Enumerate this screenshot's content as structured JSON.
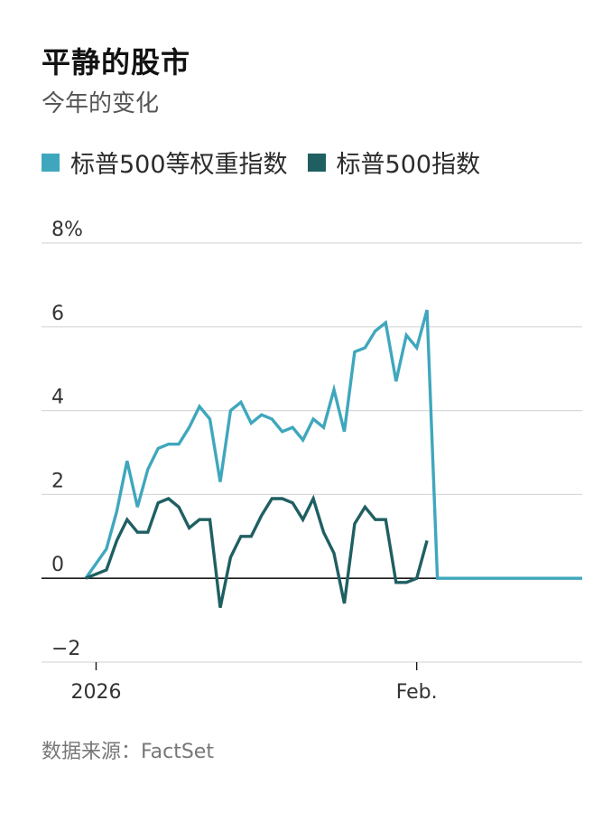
{
  "title": "平静的股市",
  "subtitle": "今年的变化",
  "source": "数据来源：FactSet",
  "chart_data": {
    "type": "line",
    "ylim": [
      -2,
      8
    ],
    "y_ticks": [
      -2,
      0,
      2,
      4,
      6,
      8
    ],
    "y_tick_labels": [
      "−2",
      "0",
      "2",
      "4",
      "6",
      "8%"
    ],
    "x_range": [
      "2025-12-31",
      "2026-02-17"
    ],
    "x_ticks": [
      "2026-01-01",
      "2026-02-01"
    ],
    "x_tick_labels": [
      "2026",
      "Feb."
    ],
    "grid": true,
    "legend": "top-left",
    "series": [
      {
        "name": "标普500等权重指数",
        "color": "#3fa7bd",
        "x": [
          "2025-12-31",
          "2026-01-02",
          "2026-01-03",
          "2026-01-04",
          "2026-01-05",
          "2026-01-06",
          "2026-01-07",
          "2026-01-08",
          "2026-01-09",
          "2026-01-10",
          "2026-01-11",
          "2026-01-12",
          "2026-01-13",
          "2026-01-14",
          "2026-01-15",
          "2026-01-16",
          "2026-01-17",
          "2026-01-18",
          "2026-01-19",
          "2026-01-20",
          "2026-01-21",
          "2026-01-22",
          "2026-01-23",
          "2026-01-24",
          "2026-01-25",
          "2026-01-26",
          "2026-01-27",
          "2026-01-28",
          "2026-01-29",
          "2026-01-30",
          "2026-01-31",
          "2026-02-01",
          "2026-02-02",
          "2026-02-03",
          "2026-02-04",
          "2026-02-05",
          "2026-02-06",
          "2026-02-07",
          "2026-02-08",
          "2026-02-09",
          "2026-02-10",
          "2026-02-11",
          "2026-02-12",
          "2026-02-13",
          "2026-02-14",
          "2026-02-15",
          "2026-02-16",
          "2026-02-17"
        ],
        "values": [
          0.0,
          0.7,
          1.6,
          2.8,
          1.7,
          2.6,
          3.1,
          3.2,
          3.2,
          3.6,
          4.1,
          3.8,
          2.3,
          4.0,
          4.2,
          3.7,
          3.9,
          3.8,
          3.5,
          3.6,
          3.3,
          3.8,
          3.6,
          4.5,
          3.5,
          5.4,
          5.5,
          5.9,
          6.1,
          4.7,
          5.8,
          5.5,
          6.4,
          0,
          0,
          0,
          0,
          0,
          0,
          0,
          0,
          0,
          0,
          0,
          0,
          0,
          0,
          0
        ]
      },
      {
        "name": "标普500指数",
        "color": "#1f5f62",
        "x": [
          "2025-12-31",
          "2026-01-02",
          "2026-01-03",
          "2026-01-04",
          "2026-01-05",
          "2026-01-06",
          "2026-01-07",
          "2026-01-08",
          "2026-01-09",
          "2026-01-10",
          "2026-01-11",
          "2026-01-12",
          "2026-01-13",
          "2026-01-14",
          "2026-01-15",
          "2026-01-16",
          "2026-01-17",
          "2026-01-18",
          "2026-01-19",
          "2026-01-20",
          "2026-01-21",
          "2026-01-22",
          "2026-01-23",
          "2026-01-24",
          "2026-01-25",
          "2026-01-26",
          "2026-01-27",
          "2026-01-28",
          "2026-01-29",
          "2026-01-30",
          "2026-01-31",
          "2026-02-01",
          "2026-02-02"
        ],
        "values": [
          0.0,
          0.2,
          0.9,
          1.4,
          1.1,
          1.1,
          1.8,
          1.9,
          1.7,
          1.2,
          1.4,
          1.4,
          -0.7,
          0.5,
          1.0,
          1.0,
          1.5,
          1.9,
          1.9,
          1.8,
          1.4,
          1.9,
          1.1,
          0.6,
          -0.6,
          1.3,
          1.7,
          1.4,
          1.4,
          -0.1,
          -0.1,
          0.0,
          0.9
        ]
      }
    ]
  }
}
